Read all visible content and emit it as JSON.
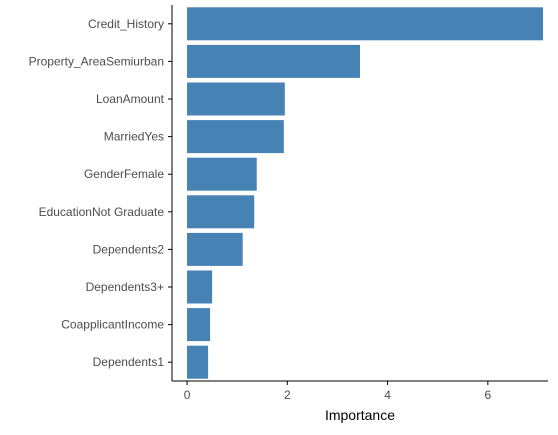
{
  "chart_data": {
    "type": "bar",
    "orientation": "horizontal",
    "categories": [
      "Credit_History",
      "Property_AreaSemiurban",
      "LoanAmount",
      "MarriedYes",
      "GenderFemale",
      "EducationNot Graduate",
      "Dependents2",
      "Dependents3+",
      "CoapplicantIncome",
      "Dependents1"
    ],
    "values": [
      7.1,
      3.45,
      1.95,
      1.93,
      1.39,
      1.34,
      1.11,
      0.5,
      0.46,
      0.42
    ],
    "title": "",
    "xlabel": "Importance",
    "ylabel": "",
    "xlim": [
      -0.3,
      7.2
    ],
    "xticks": [
      0,
      2,
      4,
      6
    ],
    "grid": false,
    "bar_color": "#4682b4"
  }
}
